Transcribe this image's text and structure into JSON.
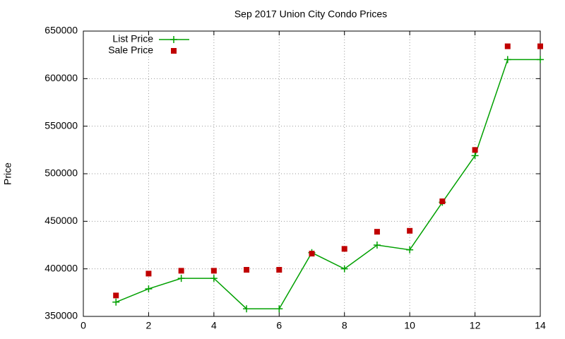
{
  "chart_data": {
    "type": "line",
    "title": "Sep 2017 Union City Condo Prices",
    "y_label": "Price",
    "x": [
      1,
      2,
      3,
      4,
      5,
      6,
      7,
      8,
      9,
      10,
      11,
      12,
      13,
      14
    ],
    "series": [
      {
        "name": "List Price",
        "color": "#00a000",
        "style": "linespoints",
        "values": [
          365000,
          379000,
          390000,
          390000,
          358000,
          358000,
          417000,
          400000,
          425000,
          420000,
          470000,
          519000,
          620000,
          620000
        ]
      },
      {
        "name": "Sale Price",
        "color": "#c00000",
        "style": "points",
        "values": [
          372000,
          395000,
          398000,
          398000,
          399000,
          399000,
          416000,
          421000,
          439000,
          440000,
          471000,
          525000,
          634000,
          634000
        ]
      }
    ],
    "xlim": [
      0,
      14
    ],
    "xticks": [
      0,
      2,
      4,
      6,
      8,
      10,
      12,
      14
    ],
    "ylim": [
      350000,
      650000
    ],
    "yticks": [
      350000,
      400000,
      450000,
      500000,
      550000,
      600000,
      650000
    ],
    "grid": true,
    "legend": "top-left"
  }
}
